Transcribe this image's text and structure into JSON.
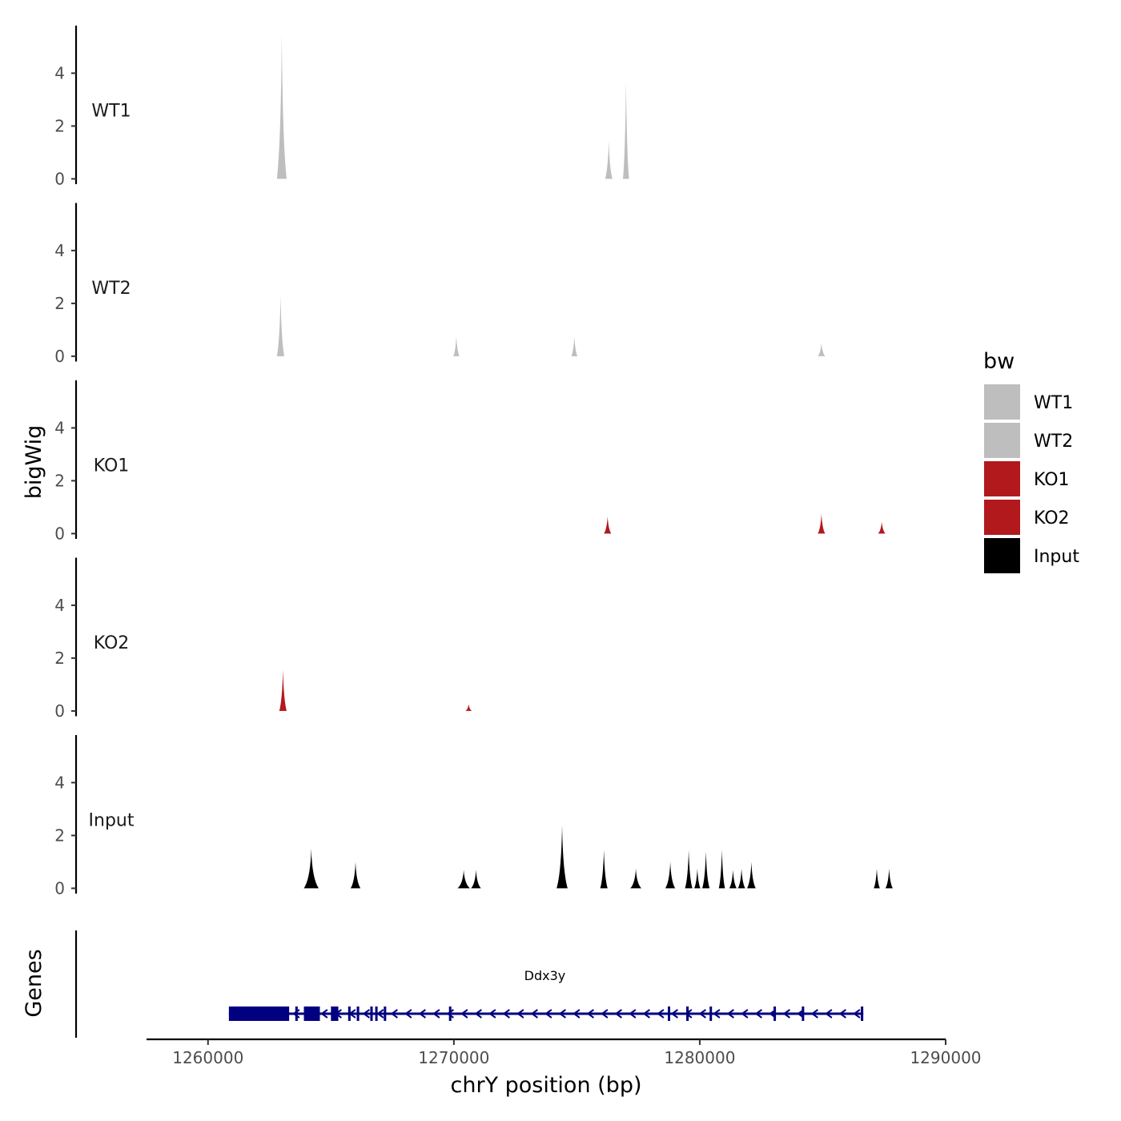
{
  "chart_data": {
    "type": "area",
    "ylabel": "bigWig",
    "xlabel": "chrY position (bp)",
    "xlim": [
      1257500,
      1290000
    ],
    "ylim": [
      -0.2,
      5.8
    ],
    "x_ticks": [
      1260000,
      1270000,
      1280000,
      1290000
    ],
    "x_tick_labels": [
      "1260000",
      "1270000",
      "1280000",
      "1290000"
    ],
    "y_ticks": [
      0,
      2,
      4
    ],
    "y_tick_labels": [
      "0",
      "2",
      "4"
    ],
    "legend": {
      "title": "bw",
      "position": "right",
      "entries": [
        {
          "label": "WT1",
          "color": "#bebebe"
        },
        {
          "label": "WT2",
          "color": "#bebebe"
        },
        {
          "label": "KO1",
          "color": "#b2191c"
        },
        {
          "label": "KO2",
          "color": "#b2191c"
        },
        {
          "label": "Input",
          "color": "#000000"
        }
      ]
    },
    "series": [
      {
        "name": "WT1",
        "color": "#bebebe",
        "peaks": [
          {
            "x": 1263000,
            "y": 5.5,
            "w": 400
          },
          {
            "x": 1276300,
            "y": 1.45,
            "w": 300
          },
          {
            "x": 1277000,
            "y": 3.7,
            "w": 250
          }
        ]
      },
      {
        "name": "WT2",
        "color": "#bebebe",
        "peaks": [
          {
            "x": 1262950,
            "y": 2.3,
            "w": 300
          },
          {
            "x": 1270100,
            "y": 0.75,
            "w": 250
          },
          {
            "x": 1274900,
            "y": 0.75,
            "w": 250
          },
          {
            "x": 1284950,
            "y": 0.5,
            "w": 300
          }
        ]
      },
      {
        "name": "KO1",
        "color": "#b2191c",
        "peaks": [
          {
            "x": 1276250,
            "y": 0.65,
            "w": 300
          },
          {
            "x": 1284950,
            "y": 0.75,
            "w": 300
          },
          {
            "x": 1287400,
            "y": 0.45,
            "w": 300
          }
        ]
      },
      {
        "name": "KO2",
        "color": "#b2191c",
        "peaks": [
          {
            "x": 1263050,
            "y": 1.55,
            "w": 300
          },
          {
            "x": 1270600,
            "y": 0.25,
            "w": 250
          }
        ]
      },
      {
        "name": "Input",
        "color": "#000000",
        "peaks": [
          {
            "x": 1264200,
            "y": 1.5,
            "w": 600
          },
          {
            "x": 1266000,
            "y": 1.0,
            "w": 400
          },
          {
            "x": 1270400,
            "y": 0.7,
            "w": 500
          },
          {
            "x": 1270900,
            "y": 0.7,
            "w": 400
          },
          {
            "x": 1274400,
            "y": 2.4,
            "w": 450
          },
          {
            "x": 1276100,
            "y": 1.45,
            "w": 300
          },
          {
            "x": 1277400,
            "y": 0.75,
            "w": 450
          },
          {
            "x": 1278800,
            "y": 1.0,
            "w": 400
          },
          {
            "x": 1279550,
            "y": 1.45,
            "w": 300
          },
          {
            "x": 1279900,
            "y": 0.75,
            "w": 250
          },
          {
            "x": 1280250,
            "y": 1.4,
            "w": 300
          },
          {
            "x": 1280900,
            "y": 1.45,
            "w": 250
          },
          {
            "x": 1281350,
            "y": 0.7,
            "w": 300
          },
          {
            "x": 1281700,
            "y": 0.75,
            "w": 300
          },
          {
            "x": 1282100,
            "y": 1.0,
            "w": 350
          },
          {
            "x": 1287200,
            "y": 0.75,
            "w": 250
          },
          {
            "x": 1287700,
            "y": 0.75,
            "w": 300
          }
        ]
      }
    ],
    "gene_track": {
      "label": "Genes",
      "gene_name": "Ddx3y",
      "color": "#000080",
      "strand": "-",
      "start": 1260850,
      "end": 1286650,
      "label_x": 1273700,
      "exons": [
        [
          1260850,
          1263300
        ],
        [
          1263550,
          1263650
        ],
        [
          1263900,
          1264550
        ],
        [
          1265000,
          1265300
        ],
        [
          1265700,
          1265800
        ],
        [
          1266050,
          1266150
        ],
        [
          1266600,
          1266700
        ],
        [
          1266800,
          1266870
        ],
        [
          1267150,
          1267220
        ],
        [
          1269800,
          1269870
        ],
        [
          1278700,
          1278770
        ],
        [
          1279450,
          1279550
        ],
        [
          1280400,
          1280480
        ],
        [
          1283000,
          1283060
        ],
        [
          1284150,
          1284220
        ],
        [
          1286550,
          1286650
        ]
      ]
    }
  }
}
